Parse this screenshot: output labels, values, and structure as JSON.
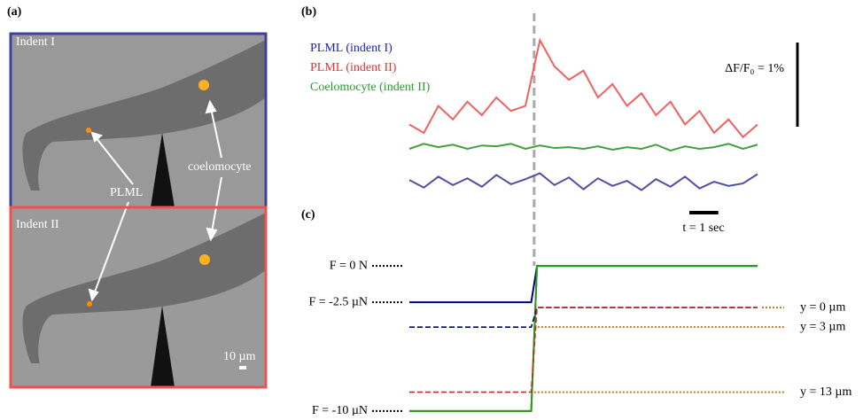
{
  "panel_a": {
    "label": "(a)",
    "frames": [
      {
        "label": "Indent I"
      },
      {
        "label": "Indent II"
      }
    ],
    "annotations": [
      "PLML",
      "coelomocyte"
    ],
    "scale_bar": "10 µm"
  },
  "chart_data": [
    {
      "type": "line",
      "panel_label": "(b)",
      "stimulus_t": 4.3,
      "x": [
        0,
        0.5,
        1,
        1.5,
        2,
        2.5,
        3,
        3.5,
        4,
        4.5,
        5,
        5.5,
        6,
        6.5,
        7,
        7.5,
        8,
        8.5,
        9,
        9.5,
        10,
        10.5,
        11,
        11.5,
        12
      ],
      "xlim": [
        0,
        12
      ],
      "ylim": [
        0,
        2
      ],
      "series": [
        {
          "name": "PLML (indent I)",
          "color": "#5050a0",
          "legend_color": "#2020c0",
          "values": [
            0.23,
            0.14,
            0.27,
            0.17,
            0.25,
            0.15,
            0.29,
            0.18,
            0.24,
            0.31,
            0.17,
            0.26,
            0.12,
            0.25,
            0.16,
            0.22,
            0.11,
            0.24,
            0.15,
            0.27,
            0.13,
            0.21,
            0.16,
            0.19,
            0.3
          ]
        },
        {
          "name": "PLML (indent II)",
          "color": "#f06060",
          "legend_color": "#e83030",
          "values": [
            0.89,
            0.79,
            1.11,
            0.95,
            1.16,
            1.0,
            1.21,
            1.05,
            1.11,
            1.89,
            1.58,
            1.42,
            1.53,
            1.21,
            1.37,
            1.11,
            1.26,
            1.0,
            1.16,
            0.89,
            1.05,
            0.79,
            0.95,
            0.74,
            0.89
          ]
        },
        {
          "name": "Coelomocyte (indent II)",
          "color": "#40a040",
          "legend_color": "#2a9a2a",
          "values": [
            0.6,
            0.66,
            0.62,
            0.65,
            0.6,
            0.64,
            0.63,
            0.66,
            0.6,
            0.64,
            0.61,
            0.62,
            0.6,
            0.63,
            0.59,
            0.62,
            0.6,
            0.65,
            0.58,
            0.63,
            0.6,
            0.62,
            0.66,
            0.6,
            0.65
          ]
        }
      ],
      "y_scale_bar": {
        "value": 1,
        "label": "ΔF/F₀ = 1%"
      },
      "x_scale_bar": {
        "value": 1,
        "label": "t = 1 sec"
      }
    },
    {
      "type": "line",
      "panel_label": "(c)",
      "x": [
        0,
        4.2,
        4.4,
        12
      ],
      "xlim": [
        0,
        12
      ],
      "ylim": [
        -10.5,
        0.5
      ],
      "y2lim": [
        17,
        -7.5
      ],
      "yticks": [
        {
          "value": 0,
          "label": "F = 0 N"
        },
        {
          "value": -2.5,
          "label": "F = -2.5 µN"
        },
        {
          "value": -10,
          "label": "F = -10 µN"
        }
      ],
      "y2ticks": [
        {
          "value": 0,
          "label": "y = 0 µm"
        },
        {
          "value": 3,
          "label": "y = 3 µm"
        },
        {
          "value": 13,
          "label": "y = 13 µm"
        }
      ],
      "series": [
        {
          "color": "#000080",
          "values": [
            -2.5,
            -2.5,
            0,
            0
          ]
        },
        {
          "color": "#e03020",
          "values": [
            -10,
            -10,
            0,
            0
          ]
        },
        {
          "color": "#20a020",
          "values": [
            -10,
            -10,
            0,
            0
          ]
        },
        {
          "color": "#000080",
          "axis": "y2",
          "dashed": true,
          "values": [
            3,
            3,
            0,
            0
          ]
        },
        {
          "color": "#c03020",
          "axis": "y2",
          "dashed": true,
          "values": [
            13,
            13,
            0,
            0
          ]
        }
      ]
    }
  ]
}
